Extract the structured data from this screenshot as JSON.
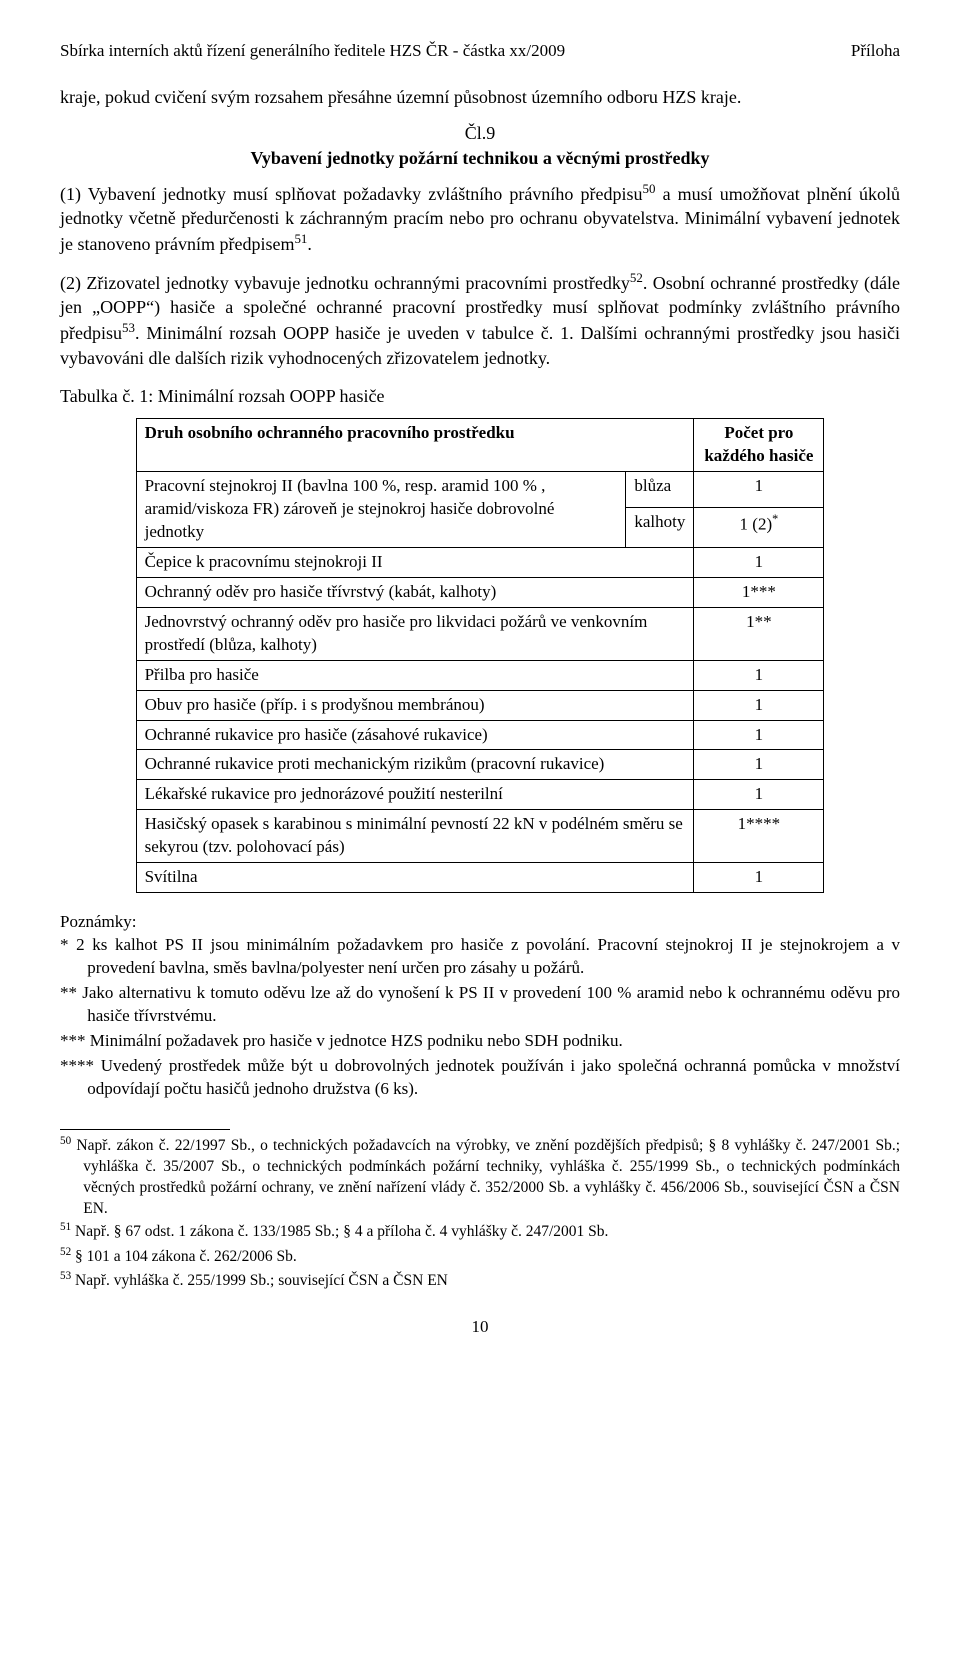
{
  "header": {
    "left": "Sbírka interních aktů řízení generálního ředitele HZS ČR - částka xx/2009",
    "right": "Příloha"
  },
  "para_intro": "kraje, pokud cvičení svým rozsahem přesáhne územní působnost  územního odboru HZS kraje.",
  "article": {
    "num": "Čl.9",
    "title": "Vybavení jednotky požární technikou a věcnými prostředky"
  },
  "p1_a": "(1) Vybavení jednotky musí splňovat požadavky zvláštního právního předpisu",
  "p1_sup1": "50",
  "p1_b": " a musí umožňovat plnění úkolů jednotky včetně předurčenosti k záchranným pracím nebo pro ochranu obyvatelstva. Minimální vybavení jednotek je stanoveno právním předpisem",
  "p1_sup2": "51",
  "p1_c": ".",
  "p2_a": "(2) Zřizovatel jednotky vybavuje jednotku ochrannými pracovními prostředky",
  "p2_sup1": "52",
  "p2_b": ". Osobní ochranné prostředky (dále jen „OOPP“) hasiče a společné ochranné pracovní prostředky musí splňovat podmínky zvláštního právního předpisu",
  "p2_sup2": "53",
  "p2_c": ". Minimální rozsah OOPP hasiče je uveden v tabulce č. 1. Dalšími ochrannými prostředky jsou hasiči vybavováni dle dalších rizik vyhodnocených zřizovatelem jednotky.",
  "tableCaption": "Tabulka č. 1: Minimální rozsah OOPP hasiče",
  "table": {
    "h1": "Druh osobního ochranného pracovního prostředku",
    "h2": "Počet pro každého hasiče",
    "stejnokroj_desc": "Pracovní stejnokroj II (bavlna 100 %, resp. aramid 100 % , aramid/viskoza FR) zároveň je stejnokroj hasiče dobrovolné jednotky",
    "bluza": "blůza",
    "bluza_cnt": "1",
    "kalhoty": "kalhoty",
    "kalhoty_cnt_a": "1 (2)",
    "kalhoty_cnt_sup": "*",
    "rows": [
      {
        "label": "Čepice k pracovnímu stejnokroji II",
        "count": "1"
      },
      {
        "label": "Ochranný oděv pro hasiče třívrstvý (kabát, kalhoty)",
        "count": "1***"
      },
      {
        "label": "Jednovrstvý ochranný oděv pro hasiče pro likvidaci požárů ve venkovním prostředí (blůza, kalhoty)",
        "count": "1**"
      },
      {
        "label": "Přilba pro hasiče",
        "count": "1"
      },
      {
        "label": "Obuv pro hasiče (příp. i s prodyšnou membránou)",
        "count": "1"
      },
      {
        "label": "Ochranné rukavice pro hasiče (zásahové rukavice)",
        "count": "1"
      },
      {
        "label": "Ochranné rukavice proti mechanickým rizikům (pracovní rukavice)",
        "count": "1"
      },
      {
        "label": "Lékařské rukavice pro jednorázové použití nesterilní",
        "count": "1"
      },
      {
        "label": "Hasičský opasek s karabinou s minimální pevností 22 kN v podélném směru se sekyrou (tzv. polohovací pás)",
        "count": "1****"
      },
      {
        "label": "Svítilna",
        "count": "1"
      }
    ]
  },
  "notes": {
    "heading": "Poznámky:",
    "n1": "* 2 ks kalhot PS II jsou minimálním požadavkem pro hasiče z povolání. Pracovní stejnokroj II je stejnokrojem a v provedení bavlna, směs bavlna/polyester není určen pro zásahy u požárů.",
    "n2": "** Jako alternativu k tomuto oděvu lze až do vynošení  k PS II v provedení 100 % aramid nebo k ochrannému oděvu pro hasiče třívrstvému.",
    "n3": "*** Minimální požadavek pro hasiče v jednotce HZS podniku nebo SDH podniku.",
    "n4": "**** Uvedený prostředek může být u dobrovolných jednotek používán i jako společná ochranná pomůcka v množství odpovídají počtu hasičů jednoho družstva (6 ks)."
  },
  "footnotes": {
    "f50_sup": "50",
    "f50": " Např. zákon č. 22/1997 Sb., o technických požadavcích na výrobky, ve znění pozdějších předpisů; § 8 vyhlášky č. 247/2001 Sb.; vyhláška č. 35/2007 Sb., o technických podmínkách požární techniky, vyhláška č. 255/1999 Sb., o technických podmínkách věcných prostředků požární ochrany, ve znění nařízení vlády č. 352/2000 Sb. a vyhlášky č. 456/2006 Sb., související ČSN a ČSN EN.",
    "f51_sup": "51",
    "f51": " Např. § 67 odst. 1 zákona č. 133/1985 Sb.; § 4 a příloha č. 4 vyhlášky č. 247/2001 Sb.",
    "f52_sup": "52",
    "f52": " § 101 a 104 zákona č.  262/2006 Sb.",
    "f53_sup": "53",
    "f53": " Např. vyhláška č. 255/1999 Sb.; související ČSN a ČSN EN"
  },
  "pageNum": "10"
}
